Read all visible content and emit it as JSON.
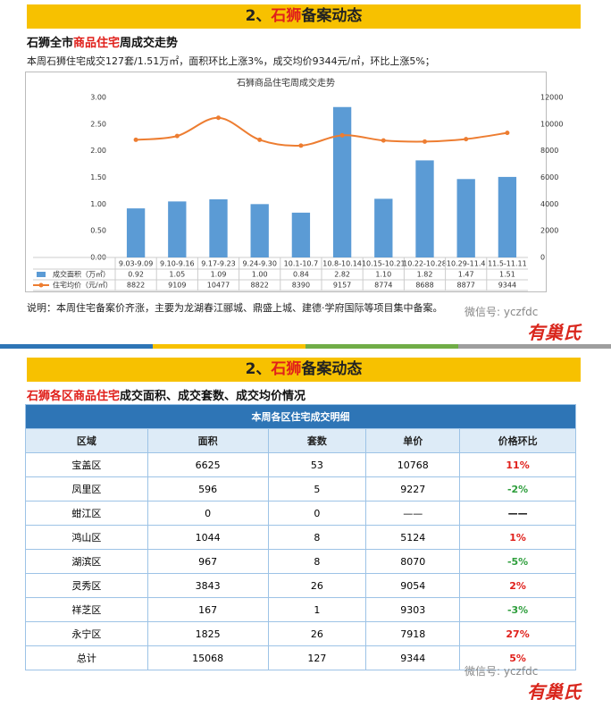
{
  "section1": {
    "header": [
      "2、",
      "石狮",
      "备案动态"
    ],
    "subtitle": [
      "石狮全市",
      "商品住宅",
      "周成交走势"
    ],
    "summary": "本周石狮住宅成交127套/1.51万㎡，面积环比上涨3%，成交均价9344元/㎡，环比上涨5%；",
    "note": "说明：本周住宅备案价齐涨，主要为龙湖春江郦城、鼎盛上城、建德·学府国际等项目集中备案。",
    "wechat": "微信号: yczfdc",
    "logo": "有巢氏"
  },
  "chart_data": {
    "type": "bar-line",
    "title": "石狮商品住宅周成交走势",
    "categories": [
      "9.03-9.09",
      "9.10-9.16",
      "9.17-9.23",
      "9.24-9.30",
      "10.1-10.7",
      "10.8-10.14",
      "10.15-10.21",
      "10.22-10.28",
      "10.29-11.4",
      "11.5-11.11"
    ],
    "series": [
      {
        "name": "成交面积（万㎡）",
        "type": "bar",
        "color": "#5b9bd5",
        "values": [
          0.92,
          1.05,
          1.09,
          1.0,
          0.84,
          2.82,
          1.1,
          1.82,
          1.47,
          1.51
        ],
        "value_labels": [
          "0.92",
          "1.05",
          "1.09",
          "1.00",
          "0.84",
          "2.82",
          "1.10",
          "1.82",
          "1.47",
          "1.51"
        ]
      },
      {
        "name": "住宅均价（元/㎡）",
        "type": "line",
        "axis": "y2",
        "color": "#ed7d31",
        "values": [
          8822,
          9109,
          10477,
          8822,
          8390,
          9157,
          8774,
          8688,
          8877,
          9344
        ]
      }
    ],
    "ylim": [
      0,
      3
    ],
    "yticks": [
      {
        "value": 0,
        "label": "0.00"
      },
      {
        "value": 0.5,
        "label": "0.50"
      },
      {
        "value": 1,
        "label": "1.00"
      },
      {
        "value": 1.5,
        "label": "1.50"
      },
      {
        "value": 2,
        "label": "2.00"
      },
      {
        "value": 2.5,
        "label": "2.50"
      },
      {
        "value": 3,
        "label": "3.00"
      }
    ],
    "y2lim": [
      0,
      12000
    ],
    "y2ticks": [
      0,
      2000,
      4000,
      6000,
      8000,
      10000,
      12000
    ]
  },
  "section2": {
    "header": [
      "2、",
      "石狮",
      "备案动态"
    ],
    "subtitle": [
      "石狮各区",
      "商品住宅",
      "成交面积、成交套数、成交均价情况"
    ],
    "wechat": "微信号: yczfdc",
    "logo": "有巢氏"
  },
  "table": {
    "title": "本周各区住宅成交明细",
    "headers": [
      "区域",
      "面积",
      "套数",
      "单价",
      "价格环比"
    ],
    "rows": [
      [
        "宝盖区",
        "6625",
        "53",
        "10768",
        "11%"
      ],
      [
        "凤里区",
        "596",
        "5",
        "9227",
        "-2%"
      ],
      [
        "蚶江区",
        "0",
        "0",
        "——",
        "——"
      ],
      [
        "鸿山区",
        "1044",
        "8",
        "5124",
        "1%"
      ],
      [
        "湖滨区",
        "967",
        "8",
        "8070",
        "-5%"
      ],
      [
        "灵秀区",
        "3843",
        "26",
        "9054",
        "2%"
      ],
      [
        "祥芝区",
        "167",
        "1",
        "9303",
        "-3%"
      ],
      [
        "永宁区",
        "1825",
        "26",
        "7918",
        "27%"
      ],
      [
        "总计",
        "15068",
        "127",
        "9344",
        "5%"
      ]
    ]
  }
}
